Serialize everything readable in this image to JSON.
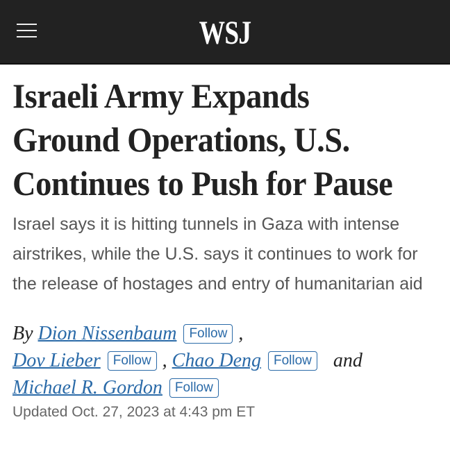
{
  "header": {
    "logo": "WSJ",
    "menu_icon": "hamburger-menu-icon"
  },
  "article": {
    "headline_lines": [
      "Israeli Army Expands",
      "Ground Operations, U.S.",
      "Continues to Push for Pause"
    ],
    "dek": "Israel says it is hitting tunnels in Gaza with intense airstrikes, while the U.S. says it continues to work for the release of hostages and entry of humanitarian aid",
    "byline": {
      "by": "By",
      "authors": [
        "Dion Nissenbaum",
        "Dov Lieber",
        "Chao Deng",
        "Michael R. Gordon"
      ],
      "follow_label": "Follow",
      "comma": ",",
      "and": "and"
    },
    "updated": "Updated Oct. 27, 2023 at 4:43 pm ET"
  },
  "colors": {
    "header_bg": "#222222",
    "link": "#2a6aa8"
  }
}
